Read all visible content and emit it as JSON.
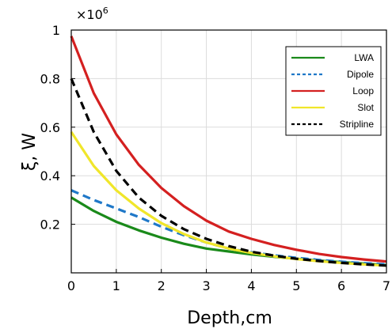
{
  "chart_data": {
    "type": "line",
    "xlabel": "Depth,cm",
    "ylabel": "ξ, W",
    "y_multiplier_label": "×10",
    "y_multiplier_exponent": "6",
    "xlim": [
      0,
      7
    ],
    "ylim": [
      0,
      1
    ],
    "x_ticks": [
      "0",
      "1",
      "2",
      "3",
      "4",
      "5",
      "6",
      "7"
    ],
    "y_ticks": [
      "0.2",
      "0.4",
      "0.6",
      "0.8",
      "1"
    ],
    "grid": true,
    "legend_position": "top-right",
    "series": [
      {
        "name": "LWA",
        "color": "#1a8a1a",
        "dash": "solid",
        "x": [
          0,
          0.5,
          1,
          1.5,
          2,
          2.5,
          3,
          3.5,
          4,
          4.5,
          5,
          5.5,
          6,
          6.5,
          7
        ],
        "y": [
          0.31,
          0.255,
          0.21,
          0.175,
          0.145,
          0.12,
          0.1,
          0.088,
          0.076,
          0.066,
          0.058,
          0.05,
          0.044,
          0.038,
          0.032
        ]
      },
      {
        "name": "Dipole",
        "color": "#1f78c8",
        "dash": "dashed",
        "x": [
          0,
          0.5,
          1,
          1.5,
          2,
          2.5,
          3,
          3.5,
          4,
          4.5,
          5,
          5.5,
          6,
          6.5,
          7
        ],
        "y": [
          0.34,
          0.3,
          0.265,
          0.23,
          0.19,
          0.155,
          0.125,
          0.1,
          0.085,
          0.072,
          0.062,
          0.053,
          0.046,
          0.04,
          0.035
        ]
      },
      {
        "name": "Loop",
        "color": "#d42020",
        "dash": "solid",
        "x": [
          0,
          0.5,
          1,
          1.5,
          2,
          2.5,
          3,
          3.5,
          4,
          4.5,
          5,
          5.5,
          6,
          6.5,
          7
        ],
        "y": [
          0.975,
          0.74,
          0.57,
          0.445,
          0.35,
          0.275,
          0.215,
          0.17,
          0.14,
          0.115,
          0.095,
          0.078,
          0.065,
          0.055,
          0.047
        ]
      },
      {
        "name": "Slot",
        "color": "#f0e62a",
        "dash": "solid",
        "x": [
          0,
          0.5,
          1,
          1.5,
          2,
          2.5,
          3,
          3.5,
          4,
          4.5,
          5,
          5.5,
          6,
          6.5,
          7
        ],
        "y": [
          0.58,
          0.44,
          0.34,
          0.265,
          0.205,
          0.16,
          0.125,
          0.1,
          0.082,
          0.068,
          0.057,
          0.048,
          0.041,
          0.035,
          0.03
        ]
      },
      {
        "name": "Stripline",
        "color": "#000000",
        "dash": "dashed",
        "x": [
          0,
          0.5,
          1,
          1.5,
          2,
          2.5,
          3,
          3.5,
          4,
          4.5,
          5,
          5.5,
          6,
          6.5,
          7
        ],
        "y": [
          0.8,
          0.58,
          0.42,
          0.31,
          0.235,
          0.18,
          0.14,
          0.11,
          0.087,
          0.071,
          0.058,
          0.049,
          0.041,
          0.035,
          0.03
        ]
      }
    ]
  }
}
